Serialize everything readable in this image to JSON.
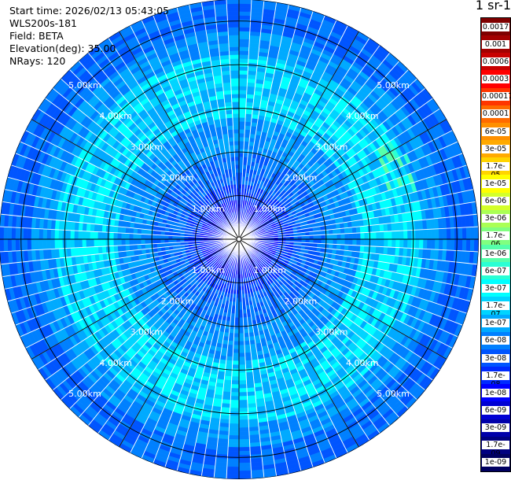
{
  "info": {
    "start_time": "Start time: 2026/02/13 05:43:05",
    "instrument": "WLS200s-181",
    "field": "Field: BETA",
    "elevation": "Elevation(deg): 35.00",
    "nrays": "NRays: 120"
  },
  "colorbar": {
    "unit_label": "m-1 sr-1",
    "labels": [
      "0.0017",
      "0.001",
      "0.0006",
      "0.0003",
      "0.00017",
      "0.0001",
      "6e-05",
      "3e-05",
      "1.7e-05",
      "1e-05",
      "6e-06",
      "3e-06",
      "1.7e-06",
      "1e-06",
      "6e-07",
      "3e-07",
      "1.7e-07",
      "1e-07",
      "6e-08",
      "3e-08",
      "1.7e-08",
      "1e-08",
      "6e-09",
      "3e-09",
      "1.7e-09",
      "1e-09"
    ],
    "colors": [
      "#7f0000",
      "#a30000",
      "#c80000",
      "#ff0000",
      "#ff3500",
      "#ff6a00",
      "#ff9000",
      "#ffaa00",
      "#ffd400",
      "#ffff00",
      "#d4ff2a",
      "#aaff55",
      "#80ff80",
      "#55ffaa",
      "#2affd4",
      "#00ffff",
      "#00d4ff",
      "#00aaff",
      "#0080ff",
      "#0055ff",
      "#002aff",
      "#0000ff",
      "#0000d4",
      "#0000aa",
      "#000080",
      "#000060"
    ]
  },
  "chart_data": {
    "type": "heatmap",
    "projection": "polar PPI scan",
    "field": "BETA",
    "elevation_deg": 35.0,
    "n_rays": 120,
    "range_rings_km": [
      1,
      2,
      3,
      4,
      5
    ],
    "range_labels": [
      "1.00km",
      "2.00km",
      "3.00km",
      "4.00km",
      "5.00km"
    ],
    "max_range_km": 5.5,
    "colorscale": "jet (log)",
    "value_range": [
      1e-09,
      0.0017
    ],
    "typical_values_by_range_km": [
      {
        "range_km": 0.5,
        "value": 1e-08
      },
      {
        "range_km": 1.5,
        "value": 3e-08
      },
      {
        "range_km": 2.5,
        "value": 6e-08
      },
      {
        "range_km": 3.5,
        "value": 1.7e-07
      },
      {
        "range_km": 4.5,
        "value": 6e-08
      },
      {
        "range_km": 5.3,
        "value": 3e-08
      }
    ],
    "spoke_angles_deg": [
      0,
      30,
      60,
      90,
      120,
      150,
      180,
      210,
      240,
      270,
      300,
      330
    ],
    "grid": true
  }
}
